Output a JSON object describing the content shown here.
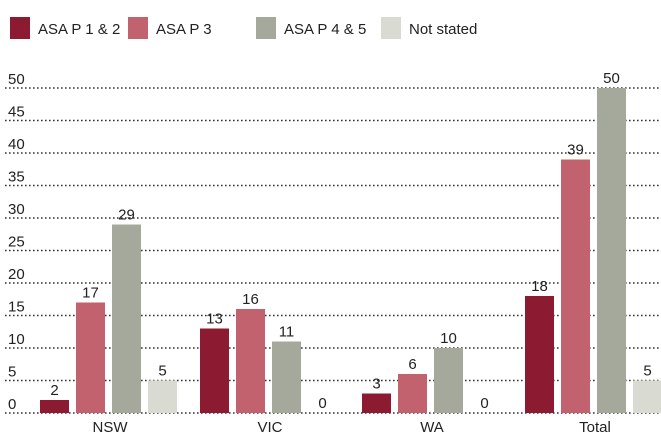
{
  "chart_data": {
    "type": "bar",
    "categories": [
      "NSW",
      "VIC",
      "WA",
      "Total"
    ],
    "series": [
      {
        "name": "ASA P 1 & 2",
        "color": "#8c1a30",
        "values": [
          2,
          13,
          3,
          18
        ]
      },
      {
        "name": "ASA P 3",
        "color": "#c2626f",
        "values": [
          17,
          16,
          6,
          39
        ]
      },
      {
        "name": "ASA P 4 & 5",
        "color": "#a4a99b",
        "values": [
          29,
          11,
          10,
          50
        ]
      },
      {
        "name": "Not stated",
        "color": "#d9dad2",
        "values": [
          5,
          0,
          0,
          5
        ]
      }
    ],
    "ylim": [
      0,
      50
    ],
    "yticks": [
      0,
      5,
      10,
      15,
      20,
      25,
      30,
      35,
      40,
      45,
      50
    ],
    "grid": true,
    "legend": "top",
    "data_labels": true
  }
}
